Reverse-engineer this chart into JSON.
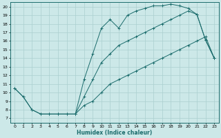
{
  "xlabel": "Humidex (Indice chaleur)",
  "bg_color": "#cce8e8",
  "grid_color": "#aacfcf",
  "line_color": "#1a6b6b",
  "xlim": [
    -0.5,
    23.5
  ],
  "ylim": [
    6.5,
    20.5
  ],
  "xticks": [
    0,
    1,
    2,
    3,
    4,
    5,
    6,
    7,
    8,
    9,
    10,
    11,
    12,
    13,
    14,
    15,
    16,
    17,
    18,
    19,
    20,
    21,
    22,
    23
  ],
  "yticks": [
    7,
    8,
    9,
    10,
    11,
    12,
    13,
    14,
    15,
    16,
    17,
    18,
    19,
    20
  ],
  "line1_x": [
    0,
    1,
    2,
    3,
    4,
    5,
    6,
    7,
    8,
    9,
    10,
    11,
    12,
    13,
    14,
    15,
    16,
    17,
    18,
    19,
    20,
    21,
    22,
    23
  ],
  "line1_y": [
    10.5,
    9.5,
    8.0,
    7.5,
    7.5,
    7.5,
    7.5,
    7.5,
    11.5,
    14.5,
    17.5,
    18.5,
    17.5,
    19.0,
    19.5,
    19.8,
    20.1,
    20.1,
    20.3,
    20.1,
    19.8,
    19.1,
    16.1,
    14.0
  ],
  "line2_x": [
    0,
    1,
    2,
    3,
    4,
    5,
    6,
    7,
    8,
    9,
    10,
    11,
    12,
    13,
    14,
    15,
    16,
    17,
    18,
    19,
    20,
    21,
    22,
    23
  ],
  "line2_y": [
    10.5,
    9.5,
    8.0,
    7.5,
    7.5,
    7.5,
    7.5,
    7.5,
    8.5,
    9.0,
    10.0,
    11.0,
    11.5,
    12.0,
    12.5,
    13.0,
    13.5,
    14.0,
    14.5,
    15.0,
    15.5,
    16.0,
    16.5,
    14.0
  ],
  "line3_x": [
    7,
    8,
    9,
    10,
    11,
    12,
    13,
    14,
    15,
    16,
    17,
    18,
    19,
    20,
    21,
    22,
    23
  ],
  "line3_y": [
    7.5,
    9.5,
    11.5,
    13.5,
    14.5,
    15.5,
    16.0,
    16.5,
    17.0,
    17.5,
    18.0,
    18.5,
    19.0,
    19.5,
    19.1,
    16.1,
    14.0
  ]
}
